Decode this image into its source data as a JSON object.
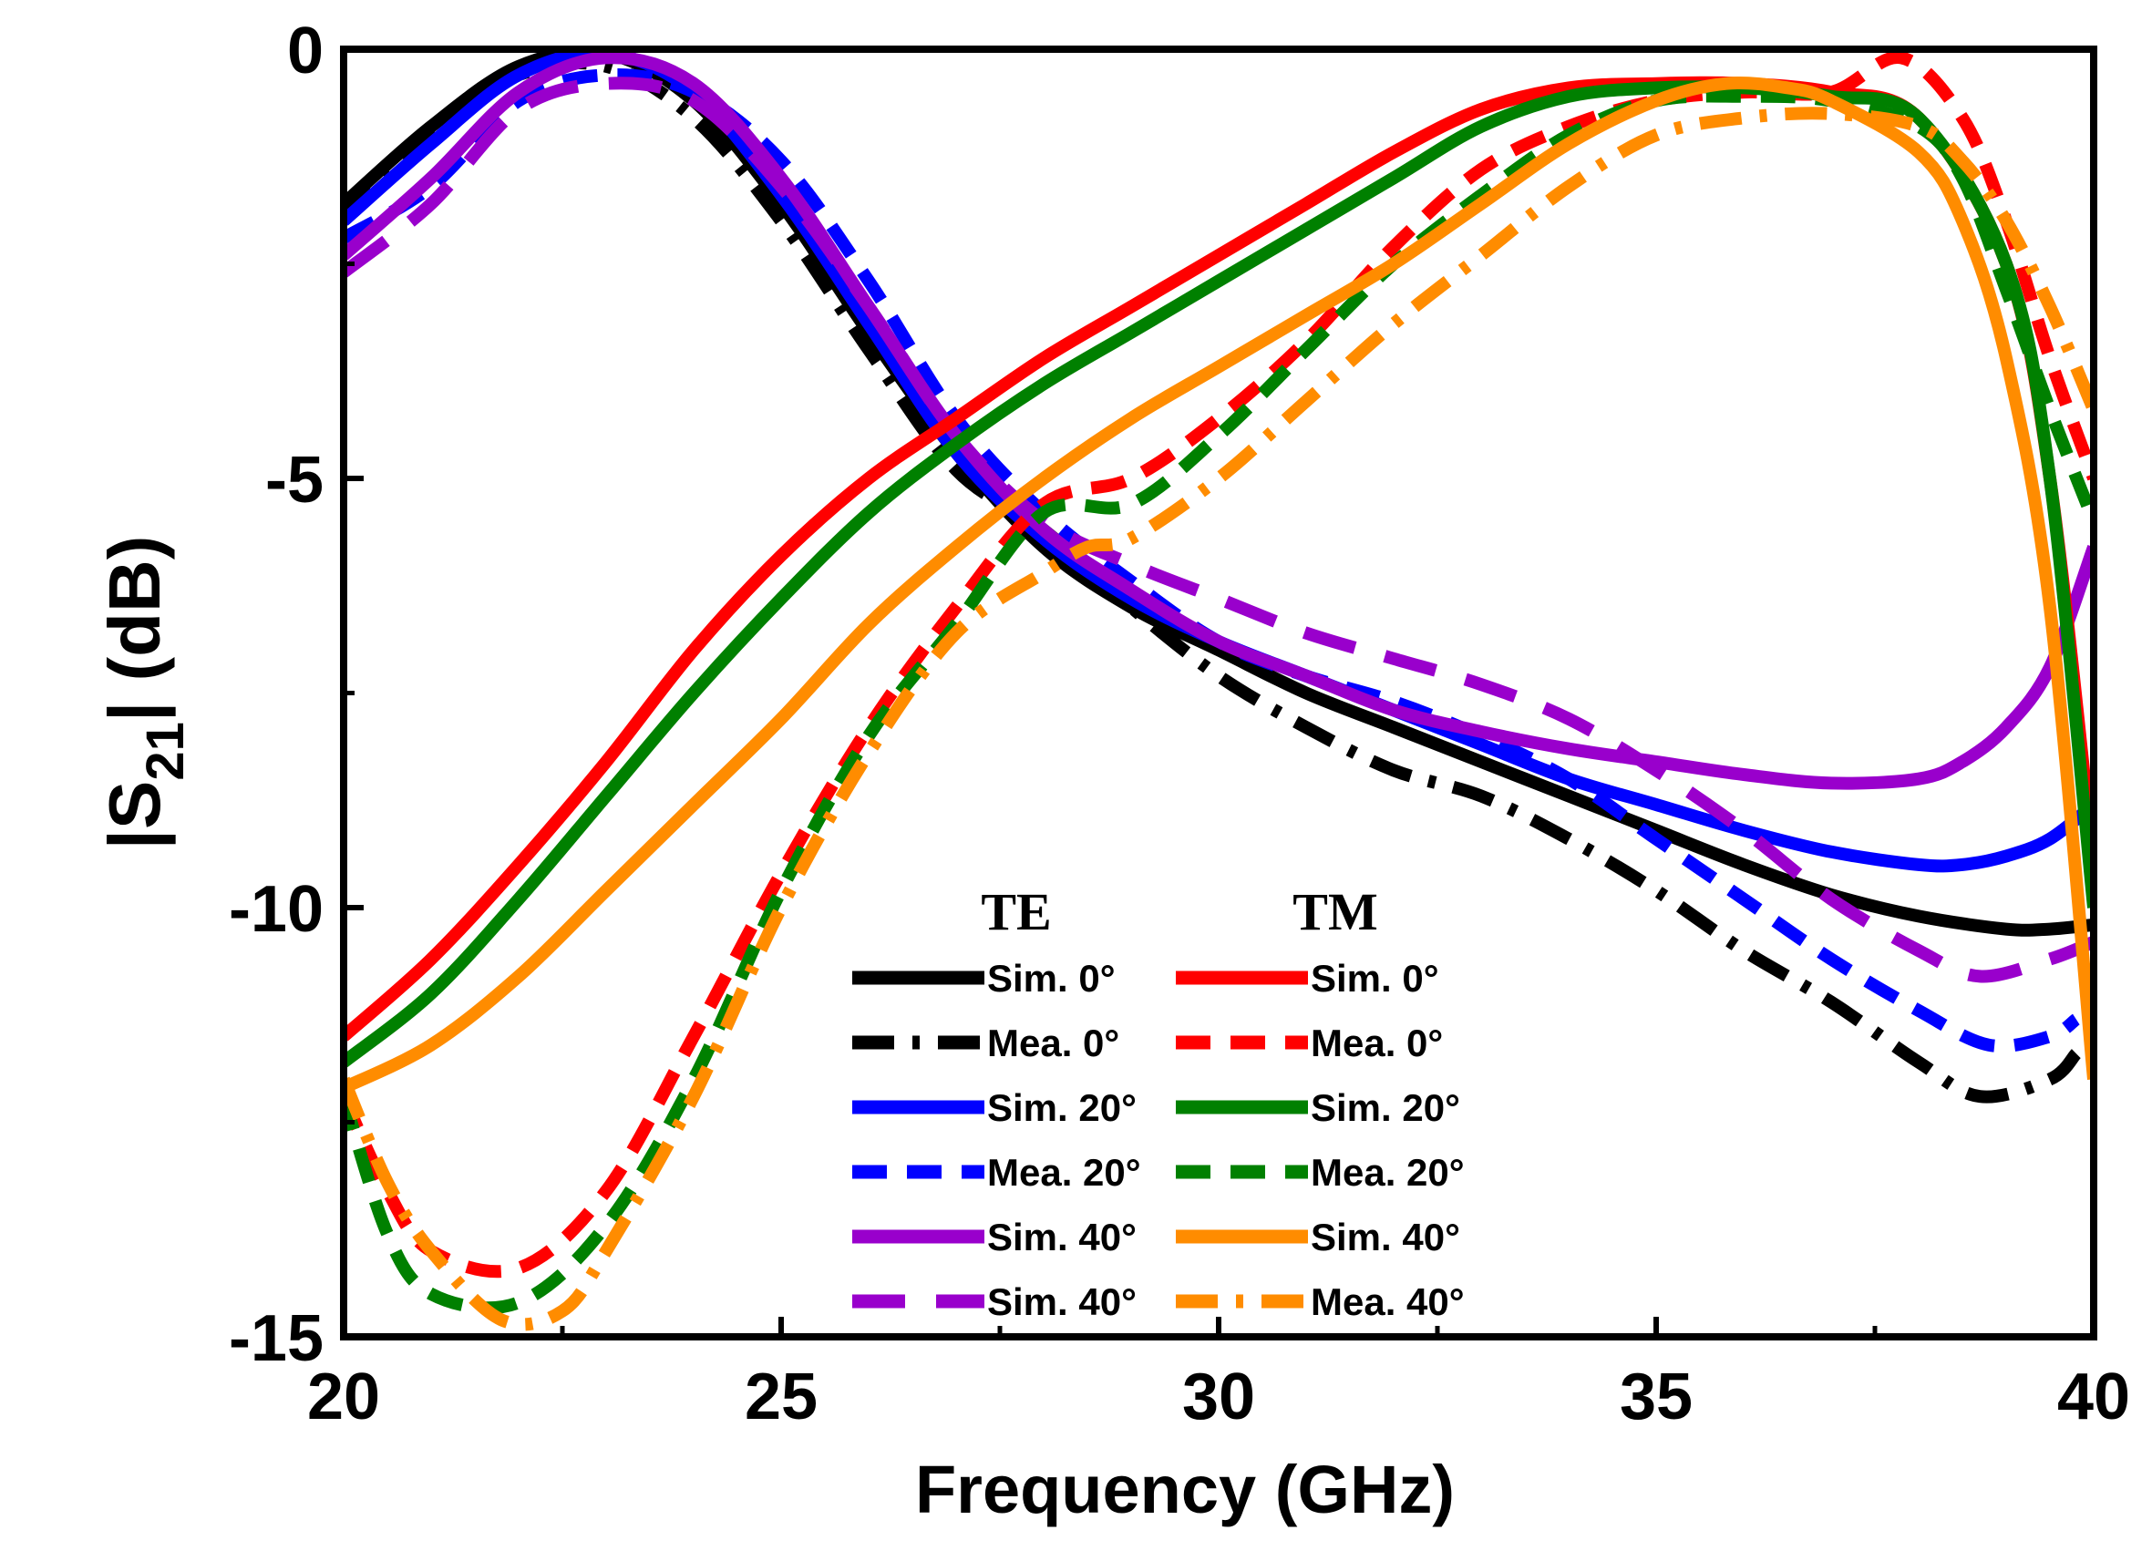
{
  "chart_data": {
    "type": "line",
    "title": "",
    "xlabel": "Frequency (GHz)",
    "ylabel": "|S21| (dB)",
    "ylabel_parts": {
      "open": "|S",
      "sub": "21",
      "close": "| (dB)"
    },
    "xlim": [
      20,
      40
    ],
    "ylim": [
      -15,
      0
    ],
    "xticks": [
      20,
      25,
      30,
      35,
      40
    ],
    "yticks": [
      0,
      -5,
      -10,
      -15
    ],
    "xtick_labels": [
      "20",
      "25",
      "30",
      "35",
      "40"
    ],
    "ytick_labels": [
      "0",
      "-5",
      "-10",
      "-15"
    ],
    "legend": {
      "location": "lower-center",
      "headers": [
        "TE",
        "TM"
      ]
    },
    "series": [
      {
        "name": "Sim. 0°",
        "group": "TE",
        "color": "#000000",
        "dash": "solid",
        "x": [
          20,
          21,
          22,
          23,
          24,
          25,
          26,
          27,
          28,
          29,
          30,
          31,
          32,
          33,
          34,
          35,
          36,
          37,
          38,
          39,
          39.5,
          40
        ],
        "y": [
          -1.8,
          -0.9,
          -0.2,
          -0.05,
          -0.6,
          -1.8,
          -3.3,
          -4.7,
          -5.8,
          -6.5,
          -7.0,
          -7.5,
          -7.9,
          -8.3,
          -8.7,
          -9.1,
          -9.5,
          -9.85,
          -10.1,
          -10.25,
          -10.25,
          -10.2
        ]
      },
      {
        "name": "Mea. 0°",
        "group": "TE",
        "color": "#000000",
        "dash": "dashdot",
        "x": [
          20,
          21,
          22,
          23,
          24,
          25,
          26,
          27,
          28,
          29,
          30,
          31,
          32,
          33,
          34,
          35,
          36,
          37,
          38,
          38.7,
          39.5,
          39.8
        ],
        "y": [
          -2.0,
          -1.0,
          -0.3,
          -0.2,
          -0.8,
          -2.0,
          -3.5,
          -4.9,
          -5.6,
          -6.5,
          -7.3,
          -7.9,
          -8.4,
          -8.7,
          -9.2,
          -9.8,
          -10.5,
          -11.1,
          -11.8,
          -12.2,
          -12.0,
          -11.7
        ]
      },
      {
        "name": "Sim. 20°",
        "group": "TE",
        "color": "#0000ff",
        "dash": "solid",
        "x": [
          20,
          21,
          22,
          23,
          24,
          25,
          26,
          27,
          28,
          29,
          30,
          31,
          32,
          33,
          34,
          35,
          36,
          37,
          38,
          38.5,
          39,
          39.5,
          40
        ],
        "y": [
          -2.0,
          -1.1,
          -0.3,
          -0.05,
          -0.5,
          -1.7,
          -3.2,
          -4.7,
          -5.7,
          -6.4,
          -6.9,
          -7.3,
          -7.7,
          -8.1,
          -8.5,
          -8.8,
          -9.1,
          -9.35,
          -9.5,
          -9.5,
          -9.4,
          -9.2,
          -8.8
        ]
      },
      {
        "name": "Mea. 20°",
        "group": "TE",
        "color": "#0000ff",
        "dash": "dash",
        "x": [
          20,
          21,
          22,
          23,
          24,
          25,
          26,
          27,
          28,
          29,
          30,
          31,
          32,
          33,
          34,
          35,
          36,
          37,
          38,
          38.8,
          39.5,
          39.8
        ],
        "y": [
          -2.2,
          -1.6,
          -0.6,
          -0.3,
          -0.5,
          -1.3,
          -2.7,
          -4.3,
          -5.4,
          -6.2,
          -6.9,
          -7.3,
          -7.6,
          -8.0,
          -8.5,
          -9.2,
          -9.9,
          -10.6,
          -11.2,
          -11.6,
          -11.5,
          -11.3
        ]
      },
      {
        "name": "Sim. 40°",
        "group": "TE",
        "color": "#9900cc",
        "dash": "solid",
        "x": [
          20,
          21,
          22,
          23,
          24,
          25,
          26,
          27,
          28,
          29,
          30,
          31,
          32,
          33,
          34,
          35,
          36,
          37,
          38,
          38.5,
          39,
          39.5,
          40
        ],
        "y": [
          -2.4,
          -1.5,
          -0.5,
          -0.1,
          -0.4,
          -1.5,
          -3.0,
          -4.5,
          -5.6,
          -6.3,
          -6.9,
          -7.3,
          -7.7,
          -7.95,
          -8.15,
          -8.3,
          -8.45,
          -8.55,
          -8.5,
          -8.3,
          -7.9,
          -7.2,
          -5.8
        ]
      },
      {
        "name": "Sim. 40°",
        "group": "TE",
        "color": "#9900cc",
        "dash": "longdash",
        "x": [
          20,
          21,
          22,
          23,
          24,
          25,
          26,
          27,
          28,
          29,
          30,
          31,
          32,
          33,
          34,
          35,
          36,
          37,
          38,
          38.7,
          39.5,
          40
        ],
        "y": [
          -2.6,
          -1.8,
          -0.7,
          -0.4,
          -0.6,
          -1.6,
          -3.0,
          -4.5,
          -5.5,
          -6.0,
          -6.4,
          -6.8,
          -7.1,
          -7.4,
          -7.8,
          -8.4,
          -9.1,
          -9.9,
          -10.5,
          -10.8,
          -10.6,
          -10.4
        ]
      },
      {
        "name": "Sim. 0°",
        "group": "TM",
        "color": "#ff0000",
        "dash": "solid",
        "x": [
          20,
          21,
          22,
          23,
          24,
          25,
          26,
          27,
          28,
          29,
          30,
          31,
          32,
          33,
          34,
          35,
          36,
          37,
          38,
          39,
          39.5,
          40
        ],
        "y": [
          -11.5,
          -10.6,
          -9.5,
          -8.3,
          -7.0,
          -5.9,
          -5.0,
          -4.3,
          -3.6,
          -3.0,
          -2.4,
          -1.8,
          -1.2,
          -0.7,
          -0.45,
          -0.4,
          -0.4,
          -0.5,
          -0.8,
          -2.5,
          -5.0,
          -9.5
        ]
      },
      {
        "name": "Mea. 0°",
        "group": "TM",
        "color": "#ff0000",
        "dash": "dash",
        "x": [
          20,
          20.5,
          21,
          22,
          23,
          24,
          25,
          26,
          27,
          28,
          29,
          30,
          31,
          32,
          33,
          34,
          35,
          36,
          37,
          37.8,
          38.5,
          39,
          39.5,
          40
        ],
        "y": [
          -12.2,
          -13.3,
          -14.0,
          -14.2,
          -13.3,
          -11.5,
          -9.6,
          -7.9,
          -6.5,
          -5.3,
          -5.0,
          -4.3,
          -3.4,
          -2.3,
          -1.4,
          -0.9,
          -0.6,
          -0.5,
          -0.5,
          -0.1,
          -0.8,
          -2.0,
          -3.6,
          -5.0
        ]
      },
      {
        "name": "Sim. 20°",
        "group": "TM",
        "color": "#008000",
        "dash": "solid",
        "x": [
          20,
          21,
          22,
          23,
          24,
          25,
          26,
          27,
          28,
          29,
          30,
          31,
          32,
          33,
          34,
          35,
          36,
          37,
          38,
          39,
          39.5,
          40
        ],
        "y": [
          -11.8,
          -11.0,
          -9.9,
          -8.7,
          -7.5,
          -6.4,
          -5.4,
          -4.6,
          -3.9,
          -3.3,
          -2.7,
          -2.1,
          -1.5,
          -0.9,
          -0.55,
          -0.45,
          -0.45,
          -0.55,
          -0.8,
          -2.5,
          -5.0,
          -10.0
        ]
      },
      {
        "name": "Mea. 20°",
        "group": "TM",
        "color": "#008000",
        "dash": "dash",
        "x": [
          20,
          20.5,
          21,
          22,
          23,
          24,
          25,
          26,
          27,
          28,
          29,
          30,
          31,
          32,
          33,
          34,
          35,
          36,
          37,
          38,
          38.5,
          39,
          39.5,
          40
        ],
        "y": [
          -12.2,
          -13.8,
          -14.5,
          -14.6,
          -13.7,
          -12.0,
          -9.8,
          -8.0,
          -6.7,
          -5.4,
          -5.3,
          -4.5,
          -3.5,
          -2.5,
          -1.7,
          -1.0,
          -0.6,
          -0.55,
          -0.6,
          -0.9,
          -1.5,
          -2.8,
          -4.2,
          -5.5
        ]
      },
      {
        "name": "Sim. 40°",
        "group": "TM",
        "color": "#ff8c00",
        "dash": "solid",
        "x": [
          20,
          21,
          22,
          23,
          24,
          25,
          26,
          27,
          28,
          29,
          30,
          31,
          32,
          33,
          34,
          35,
          35.8,
          36.5,
          37,
          38,
          38.5,
          39,
          39.5,
          40
        ],
        "y": [
          -12.1,
          -11.6,
          -10.8,
          -9.8,
          -8.8,
          -7.8,
          -6.7,
          -5.8,
          -5.0,
          -4.3,
          -3.7,
          -3.1,
          -2.5,
          -1.8,
          -1.1,
          -0.6,
          -0.4,
          -0.45,
          -0.6,
          -1.2,
          -2.0,
          -3.6,
          -6.5,
          -12.0
        ]
      },
      {
        "name": "Mea. 40°",
        "group": "TM",
        "color": "#ff8c00",
        "dash": "dashdot",
        "x": [
          20,
          20.5,
          21,
          21.8,
          22.5,
          23,
          24,
          25,
          26,
          27,
          28,
          28.5,
          29,
          30,
          31,
          32,
          33,
          34,
          35,
          36,
          37,
          38,
          38.5,
          39,
          39.5,
          40
        ],
        "y": [
          -12.0,
          -13.2,
          -14.0,
          -14.8,
          -14.7,
          -14.0,
          -12.2,
          -10.0,
          -8.2,
          -6.8,
          -6.1,
          -5.8,
          -5.7,
          -5.0,
          -4.1,
          -3.2,
          -2.4,
          -1.6,
          -1.0,
          -0.8,
          -0.75,
          -0.9,
          -1.3,
          -2.0,
          -3.0,
          -4.2
        ]
      }
    ]
  }
}
